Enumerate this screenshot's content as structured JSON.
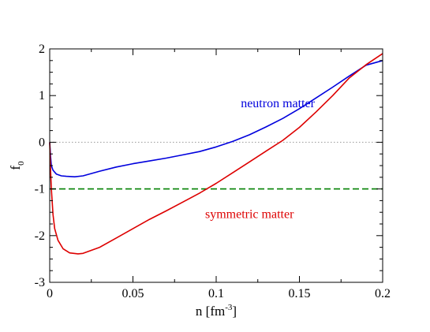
{
  "chart_data": {
    "type": "line",
    "xlabel": "n [fm",
    "xlabel_sup": "-3",
    "xlabel_close": "]",
    "ylabel": "f",
    "ylabel_sub": "0",
    "xlim": [
      0,
      0.2
    ],
    "ylim": [
      -3,
      2
    ],
    "xticks": [
      {
        "value": 0,
        "label": "0"
      },
      {
        "value": 0.05,
        "label": "0.05"
      },
      {
        "value": 0.1,
        "label": "0.1"
      },
      {
        "value": 0.15,
        "label": "0.15"
      },
      {
        "value": 0.2,
        "label": "0.2"
      }
    ],
    "yticks": [
      {
        "value": -3,
        "label": "-3"
      },
      {
        "value": -2,
        "label": "-2"
      },
      {
        "value": -1,
        "label": "-1"
      },
      {
        "value": 0,
        "label": "0"
      },
      {
        "value": 1,
        "label": "1"
      },
      {
        "value": 2,
        "label": "2"
      }
    ],
    "grid": false,
    "reference_lines": [
      {
        "y": 0,
        "color": "#999999",
        "style": "dotted"
      },
      {
        "y": -1,
        "color": "#008000",
        "style": "dashed"
      }
    ],
    "series": [
      {
        "name": "neutron matter",
        "color": "#0000dd",
        "points": [
          [
            0.0,
            0.0
          ],
          [
            0.0005,
            -0.3
          ],
          [
            0.001,
            -0.5
          ],
          [
            0.002,
            -0.6
          ],
          [
            0.004,
            -0.68
          ],
          [
            0.007,
            -0.72
          ],
          [
            0.01,
            -0.73
          ],
          [
            0.015,
            -0.74
          ],
          [
            0.02,
            -0.72
          ],
          [
            0.03,
            -0.62
          ],
          [
            0.04,
            -0.53
          ],
          [
            0.05,
            -0.46
          ],
          [
            0.06,
            -0.4
          ],
          [
            0.07,
            -0.34
          ],
          [
            0.08,
            -0.27
          ],
          [
            0.09,
            -0.2
          ],
          [
            0.1,
            -0.1
          ],
          [
            0.11,
            0.02
          ],
          [
            0.12,
            0.16
          ],
          [
            0.13,
            0.33
          ],
          [
            0.14,
            0.51
          ],
          [
            0.15,
            0.72
          ],
          [
            0.16,
            0.95
          ],
          [
            0.17,
            1.18
          ],
          [
            0.18,
            1.42
          ],
          [
            0.19,
            1.65
          ],
          [
            0.2,
            1.75
          ]
        ]
      },
      {
        "name": "symmetric matter",
        "color": "#dd0000",
        "points": [
          [
            0.0,
            0.0
          ],
          [
            0.0005,
            -0.6
          ],
          [
            0.001,
            -1.0
          ],
          [
            0.002,
            -1.55
          ],
          [
            0.003,
            -1.85
          ],
          [
            0.005,
            -2.1
          ],
          [
            0.008,
            -2.28
          ],
          [
            0.012,
            -2.37
          ],
          [
            0.017,
            -2.39
          ],
          [
            0.02,
            -2.38
          ],
          [
            0.03,
            -2.25
          ],
          [
            0.04,
            -2.05
          ],
          [
            0.05,
            -1.85
          ],
          [
            0.06,
            -1.65
          ],
          [
            0.07,
            -1.47
          ],
          [
            0.08,
            -1.28
          ],
          [
            0.09,
            -1.09
          ],
          [
            0.1,
            -0.88
          ],
          [
            0.11,
            -0.65
          ],
          [
            0.12,
            -0.42
          ],
          [
            0.13,
            -0.19
          ],
          [
            0.14,
            0.04
          ],
          [
            0.15,
            0.32
          ],
          [
            0.16,
            0.65
          ],
          [
            0.17,
            1.0
          ],
          [
            0.18,
            1.38
          ],
          [
            0.19,
            1.66
          ],
          [
            0.2,
            1.9
          ]
        ]
      }
    ],
    "annotations": [
      {
        "text": "neutron matter",
        "x": 0.137,
        "y": 0.75,
        "color": "#0000dd"
      },
      {
        "text": "symmetric matter",
        "x": 0.12,
        "y": -1.62,
        "color": "#dd0000"
      }
    ]
  }
}
